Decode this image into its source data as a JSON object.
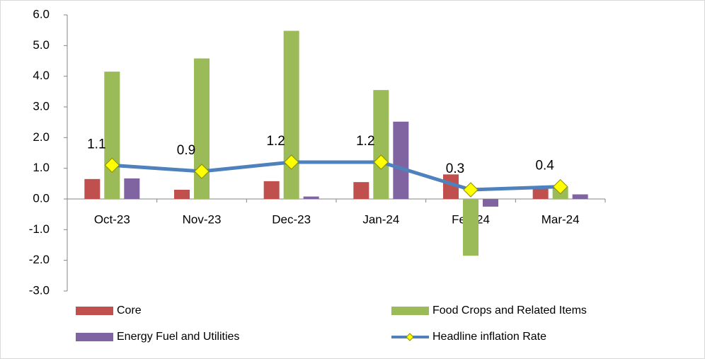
{
  "chart_data": {
    "type": "bar",
    "categories": [
      "Oct-23",
      "Nov-23",
      "Dec-23",
      "Jan-24",
      "Feb-24",
      "Mar-24"
    ],
    "series": [
      {
        "name": "Core",
        "type": "bar",
        "color": "#c0504d",
        "values": [
          0.65,
          0.3,
          0.58,
          0.55,
          0.8,
          0.35
        ]
      },
      {
        "name": "Food Crops and Related Items",
        "type": "bar",
        "color": "#9bbb59",
        "values": [
          4.15,
          4.58,
          5.48,
          3.55,
          -1.85,
          0.4
        ]
      },
      {
        "name": "Energy Fuel and Utilities",
        "type": "bar",
        "color": "#8064a2",
        "values": [
          0.67,
          0.0,
          0.08,
          2.52,
          -0.25,
          0.15
        ]
      },
      {
        "name": "Headline inflation Rate",
        "type": "line",
        "color": "#4f81bd",
        "marker_color": "#ffff00",
        "values": [
          1.1,
          0.9,
          1.2,
          1.2,
          0.3,
          0.4
        ]
      }
    ],
    "ylim": [
      -3,
      6
    ],
    "yticks": [
      {
        "value": -3,
        "label": "-3.0"
      },
      {
        "value": -2,
        "label": "-2.0"
      },
      {
        "value": -1,
        "label": "-1.0"
      },
      {
        "value": 0,
        "label": "0.0"
      },
      {
        "value": 1,
        "label": "1.0"
      },
      {
        "value": 2,
        "label": "2.0"
      },
      {
        "value": 3,
        "label": "3.0"
      },
      {
        "value": 4,
        "label": "4.0"
      },
      {
        "value": 5,
        "label": "5.0"
      },
      {
        "value": 6,
        "label": "6.0"
      }
    ],
    "grid": false,
    "legend": "bottom"
  }
}
